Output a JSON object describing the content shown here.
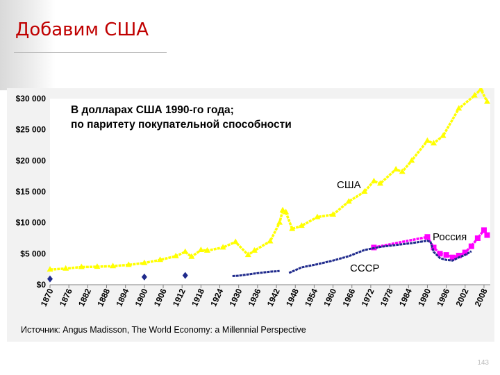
{
  "slide": {
    "title": "Добавим США",
    "page_number": "143"
  },
  "chart_data": {
    "type": "line",
    "annotation": "В долларах США 1990-го года; по паритету покупательной способности",
    "source": "Источник: Angus Madisson, The World Economy: a Millennial Perspective",
    "ylim": [
      0,
      30000
    ],
    "y_ticks": [
      0,
      5000,
      10000,
      15000,
      20000,
      25000,
      30000
    ],
    "y_tick_labels": [
      "$0",
      "$5 000",
      "$10 000",
      "$15 000",
      "$20 000",
      "$25 000",
      "$30 000"
    ],
    "xlim": [
      1870,
      2010
    ],
    "x_ticks": [
      1870,
      1876,
      1882,
      1888,
      1894,
      1900,
      1906,
      1912,
      1918,
      1924,
      1930,
      1936,
      1942,
      1948,
      1954,
      1960,
      1966,
      1972,
      1978,
      1984,
      1990,
      1996,
      2002,
      2008
    ],
    "series": [
      {
        "name": "США",
        "color": "#ffff00",
        "points": [
          [
            1870,
            2450
          ],
          [
            1875,
            2600
          ],
          [
            1880,
            2850
          ],
          [
            1885,
            2900
          ],
          [
            1890,
            3000
          ],
          [
            1895,
            3200
          ],
          [
            1900,
            3500
          ],
          [
            1905,
            4000
          ],
          [
            1910,
            4600
          ],
          [
            1913,
            5300
          ],
          [
            1915,
            4500
          ],
          [
            1918,
            5600
          ],
          [
            1920,
            5500
          ],
          [
            1925,
            6000
          ],
          [
            1929,
            6900
          ],
          [
            1933,
            4800
          ],
          [
            1935,
            5500
          ],
          [
            1940,
            7000
          ],
          [
            1943,
            10000
          ],
          [
            1944,
            12000
          ],
          [
            1945,
            11700
          ],
          [
            1947,
            9000
          ],
          [
            1950,
            9500
          ],
          [
            1955,
            10900
          ],
          [
            1960,
            11300
          ],
          [
            1965,
            13400
          ],
          [
            1970,
            15000
          ],
          [
            1973,
            16700
          ],
          [
            1975,
            16300
          ],
          [
            1980,
            18600
          ],
          [
            1982,
            18200
          ],
          [
            1985,
            20000
          ],
          [
            1990,
            23200
          ],
          [
            1992,
            22800
          ],
          [
            1995,
            24000
          ],
          [
            2000,
            28400
          ],
          [
            2005,
            30500
          ],
          [
            2007,
            31500
          ],
          [
            2009,
            29500
          ]
        ]
      },
      {
        "name": "Россия",
        "color": "#ff00ff",
        "points": [
          [
            1973,
            6000
          ],
          [
            1990,
            7700
          ],
          [
            1992,
            6000
          ],
          [
            1994,
            5000
          ],
          [
            1996,
            4800
          ],
          [
            1998,
            4400
          ],
          [
            2000,
            4700
          ],
          [
            2002,
            5200
          ],
          [
            2004,
            6200
          ],
          [
            2006,
            7500
          ],
          [
            2008,
            8800
          ],
          [
            2009,
            8000
          ]
        ]
      },
      {
        "name": "СССР",
        "color": "#1f2a8c",
        "points": [
          [
            1870,
            940
          ],
          [
            1900,
            1240
          ],
          [
            1913,
            1500
          ],
          [
            1928,
            1400
          ],
          [
            1930,
            1450
          ],
          [
            1935,
            1800
          ],
          [
            1940,
            2100
          ],
          [
            1943,
            2200
          ],
          [
            1946,
            1900
          ],
          [
            1950,
            2800
          ],
          [
            1955,
            3300
          ],
          [
            1960,
            3900
          ],
          [
            1965,
            4600
          ],
          [
            1970,
            5600
          ],
          [
            1975,
            6100
          ],
          [
            1980,
            6400
          ],
          [
            1985,
            6700
          ],
          [
            1990,
            7100
          ],
          [
            1991,
            6900
          ],
          [
            1992,
            5300
          ],
          [
            1994,
            4300
          ],
          [
            1996,
            4000
          ],
          [
            1998,
            3900
          ],
          [
            2000,
            4400
          ],
          [
            2002,
            4800
          ],
          [
            2004,
            5400
          ]
        ]
      }
    ]
  }
}
